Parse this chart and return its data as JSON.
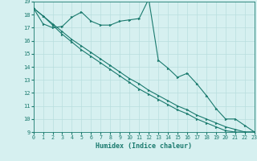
{
  "xlabel": "Humidex (Indice chaleur)",
  "bg_color": "#d6f0f0",
  "line_color": "#1a7a6e",
  "grid_color": "#b8dede",
  "x_values": [
    0,
    1,
    2,
    3,
    4,
    5,
    6,
    7,
    8,
    9,
    10,
    11,
    12,
    13,
    14,
    15,
    16,
    17,
    18,
    19,
    20,
    21,
    22,
    23
  ],
  "series1": [
    18.5,
    17.3,
    17.0,
    17.1,
    17.8,
    18.2,
    17.5,
    17.2,
    17.2,
    17.5,
    17.6,
    17.7,
    19.2,
    14.5,
    13.9,
    13.2,
    13.5,
    12.7,
    11.8,
    10.8,
    10.0,
    10.0,
    9.5,
    9.0
  ],
  "series2": [
    18.5,
    17.9,
    17.3,
    16.7,
    16.1,
    15.6,
    15.1,
    14.6,
    14.1,
    13.6,
    13.1,
    12.7,
    12.2,
    11.8,
    11.4,
    11.0,
    10.7,
    10.3,
    10.0,
    9.7,
    9.4,
    9.2,
    9.0,
    9.0
  ],
  "series3": [
    18.5,
    17.9,
    17.2,
    16.5,
    15.9,
    15.3,
    14.8,
    14.3,
    13.8,
    13.3,
    12.8,
    12.3,
    11.9,
    11.5,
    11.1,
    10.7,
    10.4,
    10.0,
    9.7,
    9.4,
    9.1,
    9.0,
    9.0,
    9.0
  ],
  "ylim": [
    9,
    19
  ],
  "xlim": [
    0,
    23
  ],
  "yticks": [
    9,
    10,
    11,
    12,
    13,
    14,
    15,
    16,
    17,
    18,
    19
  ],
  "xticks": [
    0,
    1,
    2,
    3,
    4,
    5,
    6,
    7,
    8,
    9,
    10,
    11,
    12,
    13,
    14,
    15,
    16,
    17,
    18,
    19,
    20,
    21,
    22,
    23
  ]
}
